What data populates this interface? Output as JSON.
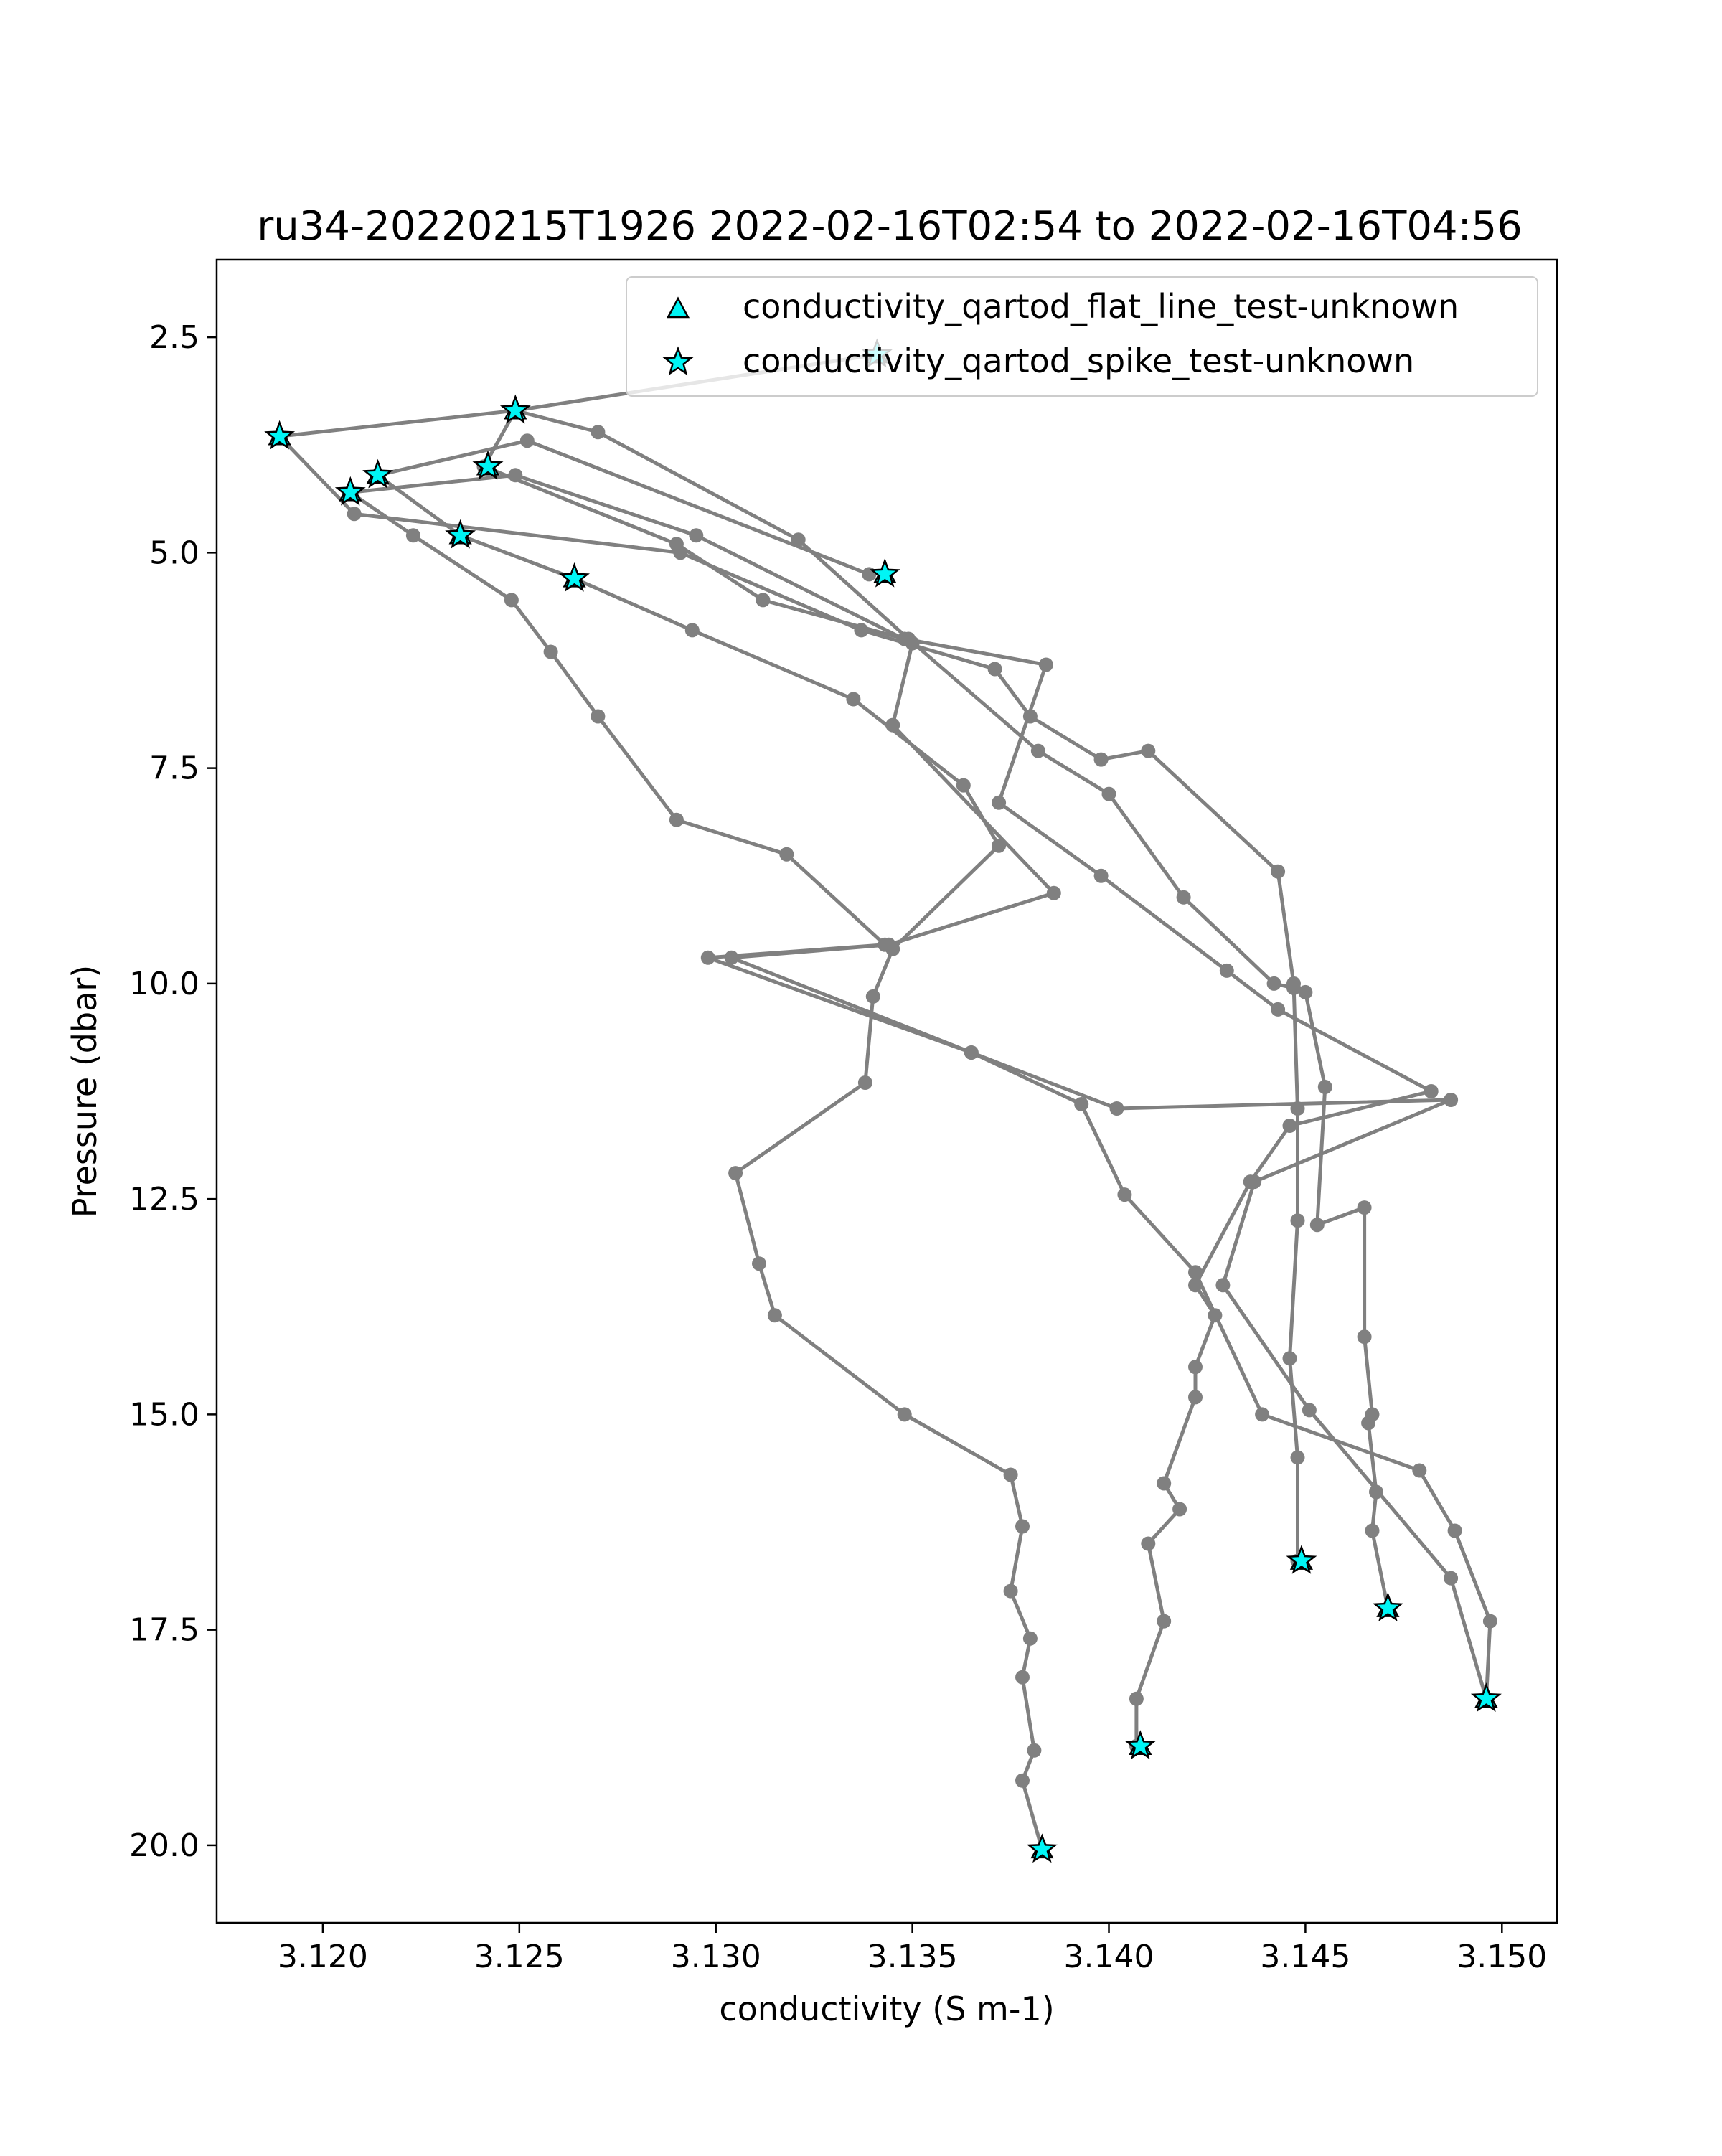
{
  "chart_data": {
    "type": "line",
    "title": "ru34-20220215T1926 2022-02-16T02:54 to 2022-02-16T04:56",
    "xlabel": "conductivity (S m-1)",
    "ylabel": "Pressure (dbar)",
    "xlim": [
      3.1173,
      3.1514
    ],
    "ylim": [
      20.9,
      1.6
    ],
    "y_inverted": true,
    "x_ticks": [
      "3.120",
      "3.125",
      "3.130",
      "3.135",
      "3.140",
      "3.145",
      "3.150"
    ],
    "x_tick_values": [
      3.12,
      3.125,
      3.13,
      3.135,
      3.14,
      3.145,
      3.15
    ],
    "y_ticks": [
      "2.5",
      "5.0",
      "7.5",
      "10.0",
      "12.5",
      "15.0",
      "17.5",
      "20.0"
    ],
    "y_tick_values": [
      2.5,
      5.0,
      7.5,
      10.0,
      12.5,
      15.0,
      17.5,
      20.0
    ],
    "grid": false,
    "legend_position": "top-right",
    "line_color": "#808080",
    "flag_color": "#00f5f5",
    "series": [
      {
        "points": [
          [
            3.1383,
            20.05
          ],
          [
            3.1378,
            19.25
          ],
          [
            3.1381,
            18.9
          ],
          [
            3.1378,
            18.05
          ],
          [
            3.138,
            17.6
          ],
          [
            3.1375,
            17.05
          ],
          [
            3.1378,
            16.3
          ],
          [
            3.1375,
            15.7
          ],
          [
            3.1348,
            15.0
          ],
          [
            3.1315,
            13.85
          ],
          [
            3.1311,
            13.25
          ],
          [
            3.1305,
            12.2
          ],
          [
            3.1338,
            11.15
          ],
          [
            3.134,
            10.15
          ],
          [
            3.1345,
            9.6
          ],
          [
            3.1372,
            8.4
          ],
          [
            3.1363,
            7.7
          ],
          [
            3.1335,
            6.7
          ],
          [
            3.1294,
            5.9
          ],
          [
            3.1264,
            5.3
          ],
          [
            3.1235,
            4.8
          ],
          [
            3.1214,
            4.1
          ],
          [
            3.1252,
            3.7
          ],
          [
            3.1339,
            5.25
          ]
        ]
      },
      {
        "points": [
          [
            3.1407,
            18.85
          ],
          [
            3.1407,
            18.3
          ],
          [
            3.1414,
            17.4
          ],
          [
            3.141,
            16.5
          ],
          [
            3.1418,
            16.1
          ],
          [
            3.1414,
            15.8
          ],
          [
            3.1422,
            14.8
          ],
          [
            3.1422,
            14.45
          ],
          [
            3.1427,
            13.85
          ],
          [
            3.1422,
            13.5
          ],
          [
            3.1436,
            12.3
          ],
          [
            3.1446,
            11.65
          ],
          [
            3.1482,
            11.25
          ],
          [
            3.1443,
            10.3
          ],
          [
            3.143,
            9.85
          ],
          [
            3.1398,
            8.75
          ],
          [
            3.1372,
            7.9
          ],
          [
            3.1384,
            6.3
          ],
          [
            3.1348,
            6.0
          ],
          [
            3.1312,
            5.55
          ],
          [
            3.129,
            4.9
          ],
          [
            3.1241,
            4.0
          ],
          [
            3.1249,
            3.35
          ],
          [
            3.1341,
            2.7
          ]
        ]
      },
      {
        "points": [
          [
            3.1448,
            16.7
          ],
          [
            3.1448,
            15.5
          ],
          [
            3.1446,
            14.35
          ],
          [
            3.1448,
            12.75
          ],
          [
            3.1448,
            11.45
          ],
          [
            3.1447,
            10.0
          ],
          [
            3.1443,
            8.7
          ],
          [
            3.141,
            7.3
          ],
          [
            3.1398,
            7.4
          ],
          [
            3.138,
            6.9
          ],
          [
            3.1371,
            6.35
          ],
          [
            3.1337,
            5.9
          ],
          [
            3.1291,
            5.0
          ],
          [
            3.1208,
            4.55
          ],
          [
            3.1189,
            3.65
          ],
          [
            3.1249,
            3.35
          ],
          [
            3.127,
            3.6
          ],
          [
            3.1321,
            4.85
          ],
          [
            3.1349,
            6.0
          ],
          [
            3.1382,
            7.3
          ],
          [
            3.14,
            7.8
          ],
          [
            3.1419,
            9.0
          ],
          [
            3.1442,
            10.0
          ],
          [
            3.1447,
            10.05
          ],
          [
            3.145,
            10.1
          ],
          [
            3.1455,
            11.2
          ],
          [
            3.1453,
            12.8
          ],
          [
            3.1465,
            12.6
          ],
          [
            3.1465,
            14.1
          ],
          [
            3.1467,
            15.0
          ],
          [
            3.1466,
            15.1
          ],
          [
            3.1468,
            15.9
          ],
          [
            3.1467,
            16.35
          ],
          [
            3.1471,
            17.25
          ]
        ]
      },
      {
        "points": [
          [
            3.1496,
            18.3
          ],
          [
            3.1497,
            17.4
          ],
          [
            3.1488,
            16.35
          ],
          [
            3.1479,
            15.65
          ],
          [
            3.1439,
            15.0
          ],
          [
            3.1422,
            13.35
          ],
          [
            3.1404,
            12.45
          ],
          [
            3.1393,
            11.4
          ],
          [
            3.1365,
            10.8
          ],
          [
            3.1298,
            9.7
          ],
          [
            3.1343,
            9.55
          ],
          [
            3.1318,
            8.5
          ],
          [
            3.129,
            8.1
          ],
          [
            3.127,
            6.9
          ],
          [
            3.1258,
            6.15
          ],
          [
            3.1248,
            5.55
          ],
          [
            3.1223,
            4.8
          ],
          [
            3.1207,
            4.3
          ],
          [
            3.1249,
            4.1
          ],
          [
            3.1295,
            4.8
          ],
          [
            3.135,
            6.05
          ],
          [
            3.1345,
            7.0
          ],
          [
            3.1386,
            8.95
          ],
          [
            3.1344,
            9.55
          ],
          [
            3.1304,
            9.7
          ],
          [
            3.1365,
            10.8
          ],
          [
            3.1402,
            11.45
          ],
          [
            3.1487,
            11.35
          ],
          [
            3.1437,
            12.3
          ],
          [
            3.1429,
            13.5
          ],
          [
            3.1451,
            14.95
          ],
          [
            3.1487,
            16.9
          ],
          [
            3.1496,
            18.3
          ]
        ]
      }
    ],
    "flagged_points": [
      {
        "test": "spike",
        "x": 3.1341,
        "y": 2.7
      },
      {
        "test": "spike",
        "x": 3.1249,
        "y": 3.35
      },
      {
        "test": "spike",
        "x": 3.1189,
        "y": 3.65
      },
      {
        "test": "spike",
        "x": 3.1242,
        "y": 4.0
      },
      {
        "test": "spike",
        "x": 3.1214,
        "y": 4.1
      },
      {
        "test": "spike",
        "x": 3.1207,
        "y": 4.3
      },
      {
        "test": "spike",
        "x": 3.1235,
        "y": 4.8
      },
      {
        "test": "spike",
        "x": 3.1264,
        "y": 5.3
      },
      {
        "test": "spike",
        "x": 3.1343,
        "y": 5.25
      },
      {
        "test": "spike",
        "x": 3.1449,
        "y": 16.7
      },
      {
        "test": "spike",
        "x": 3.1471,
        "y": 17.25
      },
      {
        "test": "spike",
        "x": 3.1496,
        "y": 18.3
      },
      {
        "test": "spike",
        "x": 3.1408,
        "y": 18.85
      },
      {
        "test": "spike",
        "x": 3.1383,
        "y": 20.05
      }
    ],
    "legend": [
      {
        "label": "conductivity_qartod_flat_line_test-unknown",
        "marker": "triangle"
      },
      {
        "label": "conductivity_qartod_spike_test-unknown",
        "marker": "star"
      }
    ]
  }
}
